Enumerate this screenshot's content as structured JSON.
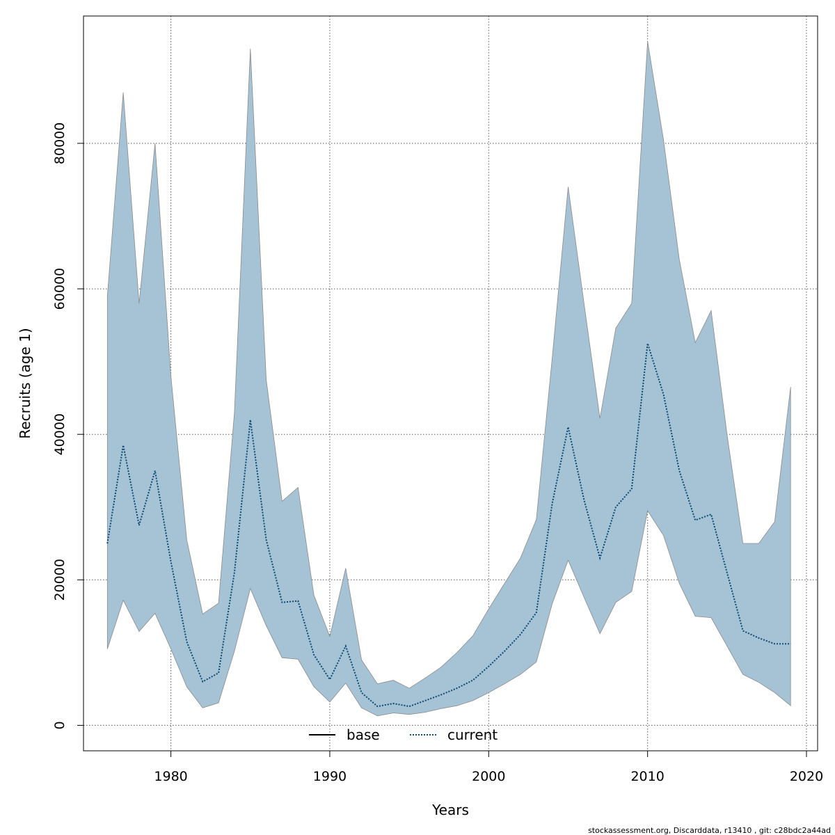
{
  "chart_data": {
    "type": "area",
    "xlabel": "Years",
    "ylabel": "Recruits (age 1)",
    "xlim": [
      1974.5,
      2020.7
    ],
    "ylim": [
      -3500,
      97500
    ],
    "x_ticks": [
      1980,
      1990,
      2000,
      2010,
      2020
    ],
    "y_ticks": [
      0,
      20000,
      40000,
      60000,
      80000
    ],
    "x_tick_labels": [
      "1980",
      "1990",
      "2000",
      "2010",
      "2020"
    ],
    "y_tick_labels": [
      "0",
      "20000",
      "40000",
      "60000",
      "80000"
    ],
    "grid": true,
    "legend_position": "bottom-center",
    "colors": {
      "band_fill": "#a5c3d5",
      "band_stroke": "#8a8a8a",
      "base_line": "#000000",
      "current_line": "#0d4f7a"
    },
    "legend": [
      {
        "key": "base",
        "label": "base",
        "style": "solid"
      },
      {
        "key": "current",
        "label": "current",
        "style": "dotted"
      }
    ],
    "x": [
      1976,
      1977,
      1978,
      1979,
      1980,
      1981,
      1982,
      1983,
      1984,
      1985,
      1986,
      1987,
      1988,
      1989,
      1990,
      1991,
      1992,
      1993,
      1994,
      1995,
      1996,
      1997,
      1998,
      1999,
      2000,
      2001,
      2002,
      2003,
      2004,
      2005,
      2006,
      2007,
      2008,
      2009,
      2010,
      2011,
      2012,
      2013,
      2014,
      2015,
      2016,
      2017,
      2018,
      2019
    ],
    "series": [
      {
        "name": "current",
        "values": [
          25000,
          38500,
          27500,
          35000,
          22500,
          11500,
          6000,
          7200,
          21000,
          42000,
          25500,
          16900,
          17100,
          9700,
          6300,
          10900,
          4500,
          2600,
          3000,
          2600,
          3400,
          4200,
          5100,
          6200,
          8100,
          10200,
          12500,
          15500,
          30500,
          41000,
          31000,
          23000,
          30000,
          32500,
          52500,
          45500,
          35000,
          28200,
          29000,
          21000,
          13000,
          12000,
          11200,
          11200
        ]
      },
      {
        "name": "base",
        "values": [
          25000,
          38500,
          27500,
          35000,
          22500,
          11500,
          6000,
          7200,
          21000,
          42000,
          25500,
          16900,
          17100,
          9700,
          6300,
          10900,
          4500,
          2600,
          3000,
          2600,
          3400,
          4200,
          5100,
          6200,
          8100,
          10200,
          12500,
          15500,
          30500,
          41000,
          31000,
          23000,
          30000,
          32500,
          52500,
          45500,
          35000,
          28200,
          29000,
          21000,
          13000,
          12000,
          11200,
          11200
        ]
      }
    ],
    "interval": {
      "lower": [
        10500,
        17200,
        12900,
        15400,
        10500,
        5300,
        2400,
        3100,
        10200,
        18800,
        13700,
        9300,
        9100,
        5300,
        3200,
        5800,
        2400,
        1300,
        1700,
        1500,
        1800,
        2300,
        2700,
        3400,
        4500,
        5700,
        7000,
        8700,
        16700,
        22700,
        17600,
        12600,
        16900,
        18400,
        29500,
        26100,
        19500,
        15000,
        14800,
        10900,
        7000,
        5900,
        4500,
        2700
      ],
      "upper": [
        59000,
        87000,
        58000,
        80000,
        48000,
        25500,
        15300,
        16800,
        43000,
        93000,
        47500,
        30800,
        32700,
        17900,
        12200,
        21600,
        9000,
        5700,
        6200,
        5100,
        6500,
        8000,
        10000,
        12300,
        16000,
        19500,
        23000,
        28300,
        50500,
        74000,
        58000,
        42200,
        54600,
        58000,
        94000,
        80500,
        64000,
        52600,
        57000,
        40000,
        25000,
        25000,
        28000,
        46500
      ]
    }
  },
  "footnote": "stockassessment.org, Discarddata, r13410 , git: c28bdc2a44ad"
}
